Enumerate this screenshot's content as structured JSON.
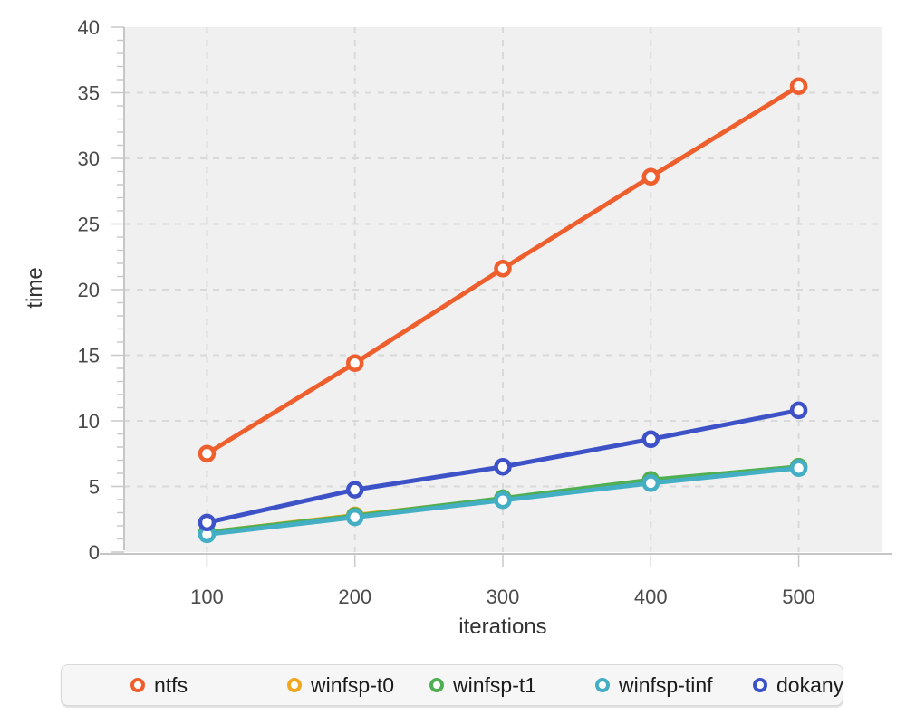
{
  "chart_data": {
    "type": "line",
    "title": "",
    "xlabel": "iterations",
    "ylabel": "time",
    "x": [
      100,
      200,
      300,
      400,
      500
    ],
    "xlim": [
      44,
      556
    ],
    "ylim": [
      0,
      40
    ],
    "x_ticks": [
      100,
      200,
      300,
      400,
      500
    ],
    "y_major_ticks": [
      0,
      5,
      10,
      15,
      20,
      25,
      30,
      35,
      40
    ],
    "y_minor_step": 1,
    "grid": "dashed",
    "legend_position": "bottom",
    "series": [
      {
        "name": "ntfs",
        "color": "#EF5F2E",
        "values": [
          7.5,
          14.4,
          21.6,
          28.6,
          35.5
        ]
      },
      {
        "name": "winfsp-t0",
        "color": "#F0A722",
        "values": [
          1.5,
          2.8,
          4.05,
          5.4,
          6.5
        ]
      },
      {
        "name": "winfsp-t1",
        "color": "#4FAF52",
        "values": [
          1.5,
          2.75,
          4.1,
          5.5,
          6.5
        ]
      },
      {
        "name": "winfsp-tinf",
        "color": "#44AEC4",
        "values": [
          1.35,
          2.65,
          3.95,
          5.25,
          6.4
        ]
      },
      {
        "name": "dokany",
        "color": "#3E52C7",
        "values": [
          2.25,
          4.75,
          6.5,
          8.6,
          10.8
        ]
      }
    ]
  },
  "styles": {
    "page_background": "#ffffff",
    "plot_background": "#f0f0f0",
    "grid_color": "#d9d9d9",
    "axis_color": "#c6c6c6",
    "tick_color": "#c9c9c9",
    "tick_label_color": "#4b4b4b",
    "axis_title_color": "#333333",
    "marker_fill": "#ffffff"
  }
}
